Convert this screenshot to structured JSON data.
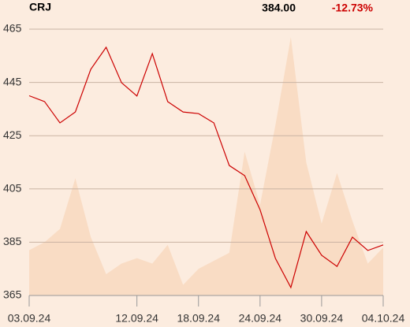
{
  "chart_data": {
    "type": "line",
    "title": "CRJ",
    "price": "384.00",
    "change": "-12.73%",
    "change_color": "#cc0000",
    "categories": [
      "03.09.24",
      null,
      null,
      null,
      null,
      null,
      null,
      "12.09.24",
      null,
      null,
      null,
      "18.09.24",
      null,
      null,
      null,
      "24.09.24",
      null,
      null,
      null,
      "30.09.24",
      null,
      null,
      null,
      "04.10.24"
    ],
    "series": [
      {
        "type": "area",
        "axis": "y2",
        "color": "#f9dcc4",
        "values": [
          17,
          20,
          25,
          44,
          22,
          8,
          12,
          14,
          12,
          19,
          4,
          10,
          13,
          16,
          54,
          34,
          64,
          97,
          50,
          27,
          46,
          28,
          12,
          18
        ]
      },
      {
        "type": "line",
        "color": "#cc0000",
        "values": [
          440,
          437.8,
          429.8,
          433.9,
          449.9,
          458.2,
          444.9,
          439.9,
          455.8,
          437.8,
          433.9,
          433.3,
          429.8,
          413.8,
          410,
          397.2,
          378.9,
          368,
          389,
          380.1,
          375.9,
          386.9,
          381.9,
          384
        ]
      }
    ],
    "ylim": [
      365,
      465
    ],
    "yticks": [
      365,
      385,
      405,
      425,
      445,
      465
    ],
    "y2lim": [
      0,
      100
    ],
    "grid": true
  }
}
